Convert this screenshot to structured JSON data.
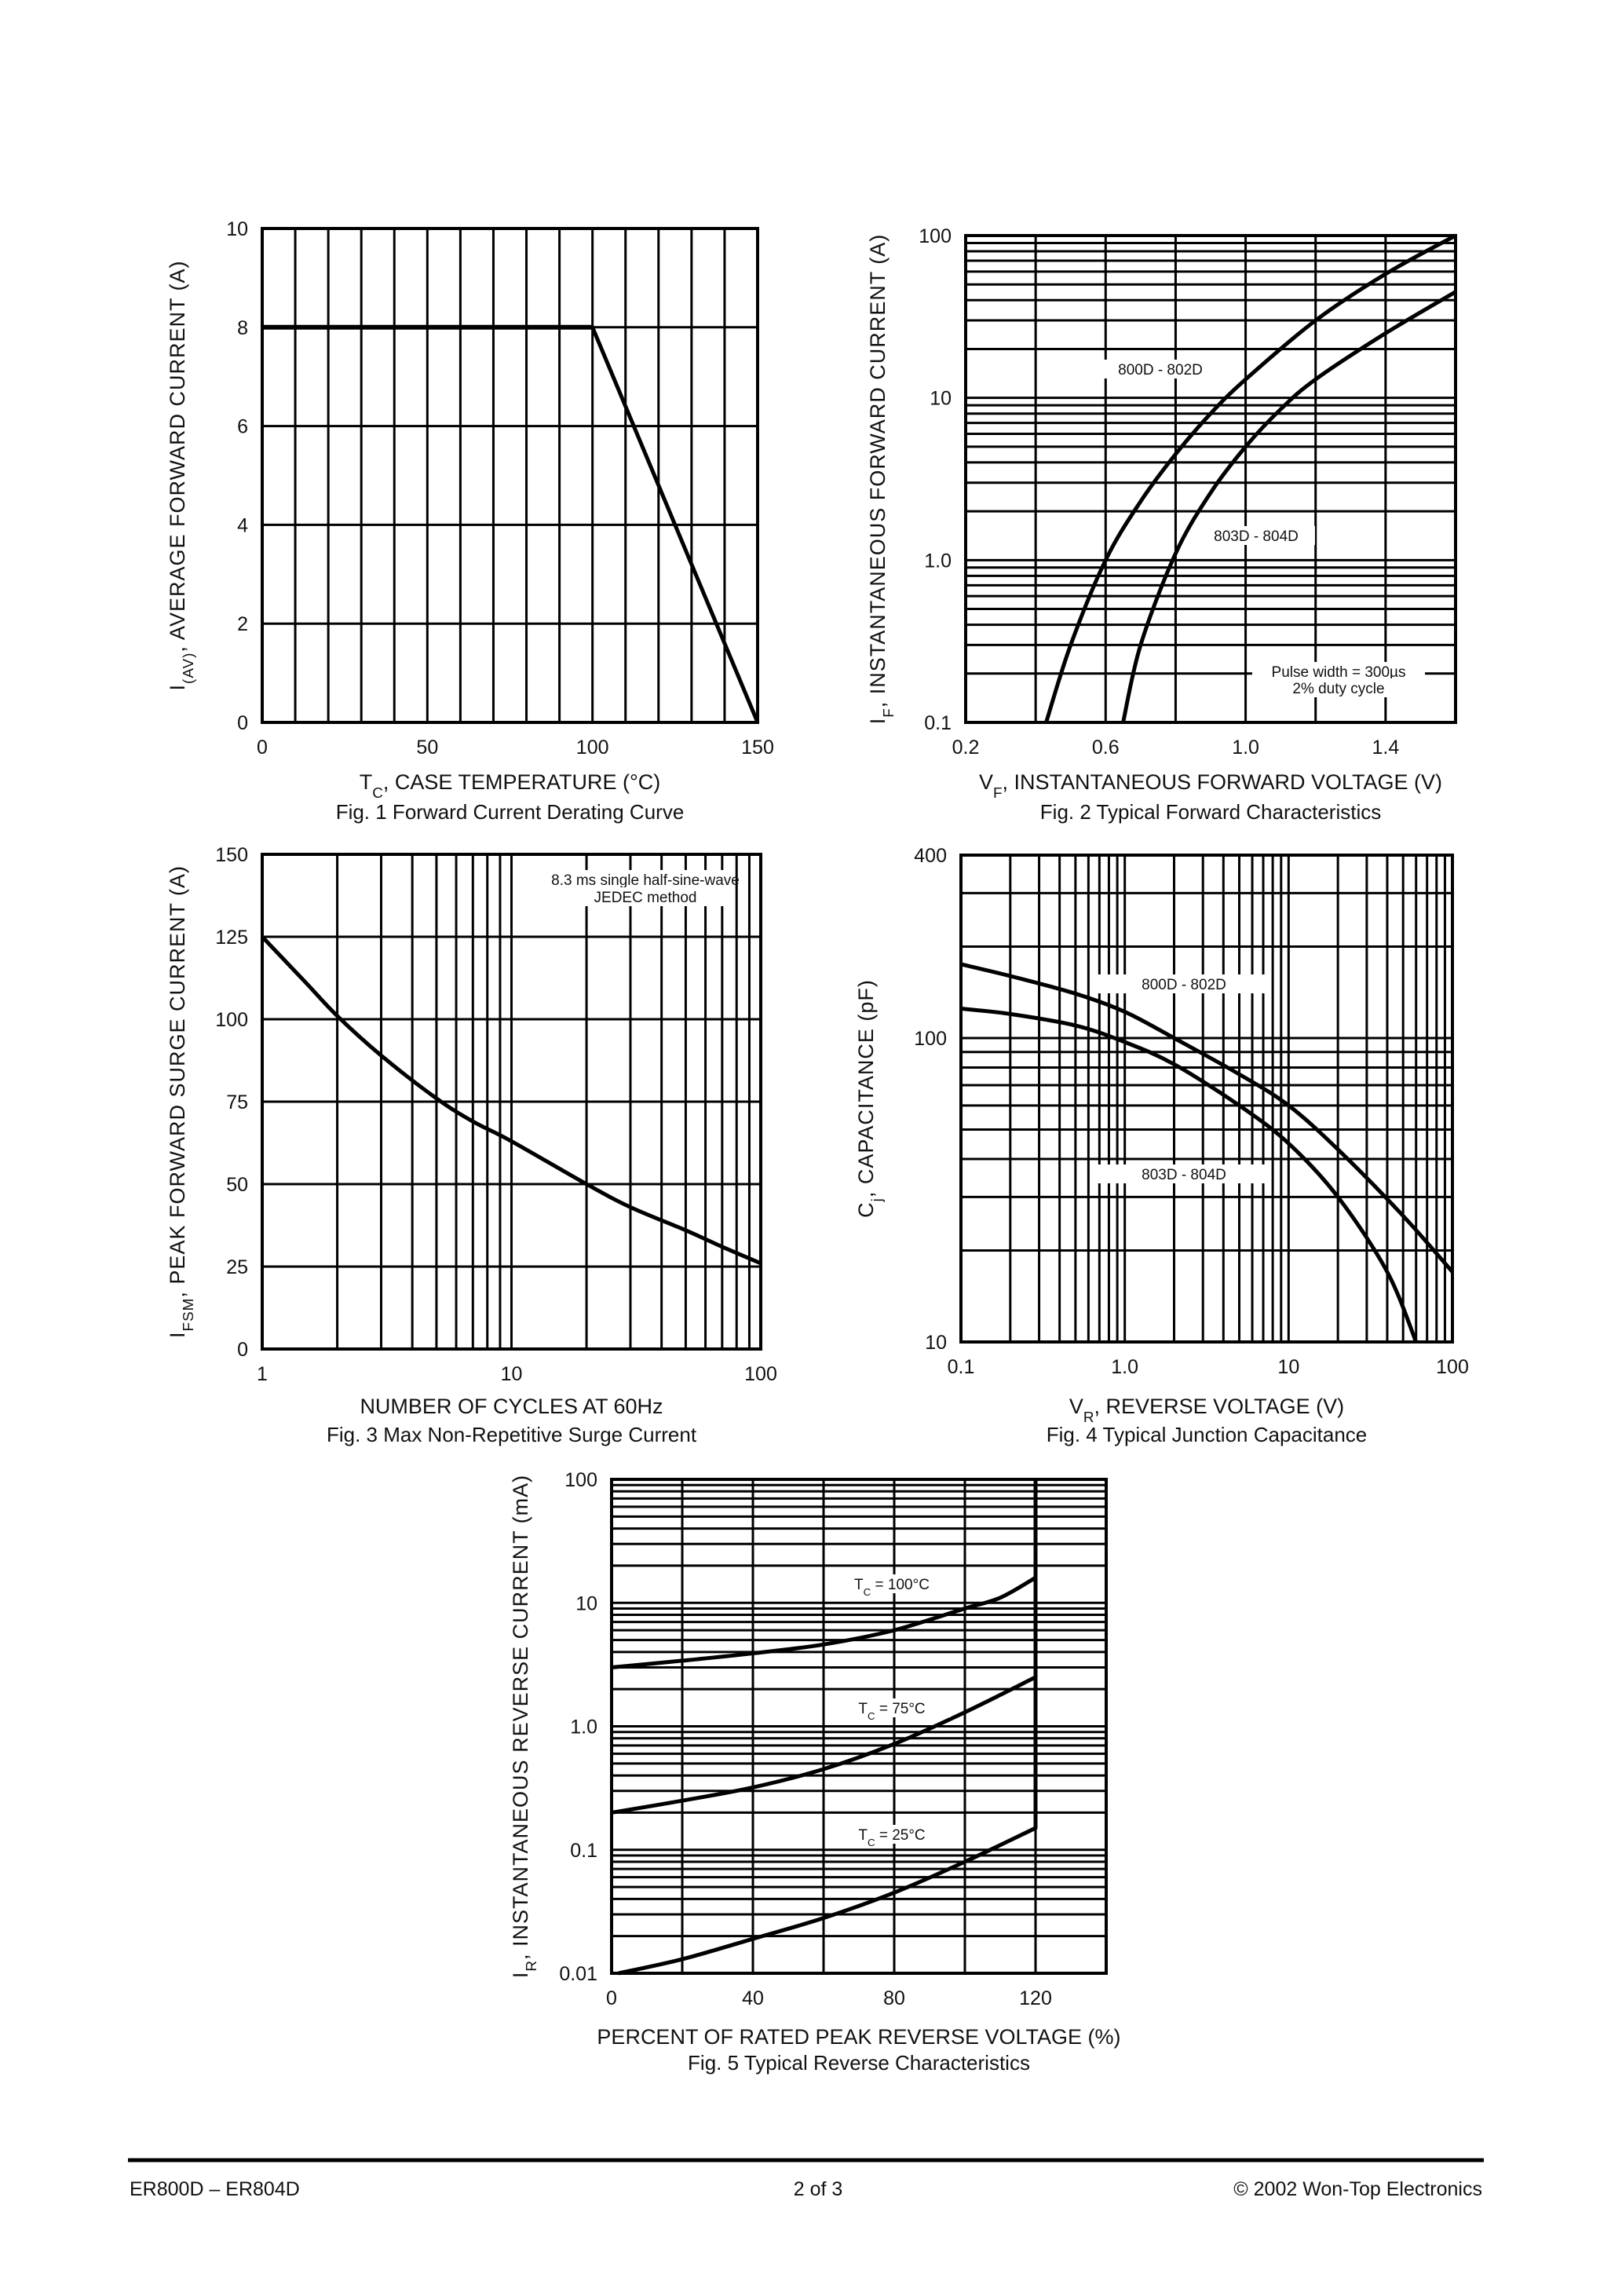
{
  "footer": {
    "left": "ER800D – ER804D",
    "center": "2 of 3",
    "right": "© 2002 Won-Top Electronics"
  },
  "chart_data": [
    {
      "type": "line",
      "caption": "Fig. 1  Forward Current Derating Curve",
      "xlabel": {
        "main": "T",
        "sub": "C",
        "rest": ", CASE TEMPERATURE (°C)"
      },
      "ylabel": {
        "main": "I",
        "sub": "(AV)",
        "rest": ", AVERAGE FORWARD CURRENT (A)"
      },
      "xscale": "linear",
      "yscale": "linear",
      "xlim": [
        0,
        150
      ],
      "ylim": [
        0,
        10
      ],
      "xticks": [
        0,
        50,
        100,
        150
      ],
      "xtick_labels": [
        "0",
        "50",
        "100",
        "150"
      ],
      "yticks": [
        0,
        2,
        4,
        6,
        8,
        10
      ],
      "ytick_labels": [
        "0",
        "2",
        "4",
        "6",
        "8",
        "10"
      ],
      "grid": true,
      "xgrid_step": 10,
      "ygrid_step": 2,
      "series": [
        {
          "x": [
            0,
            100,
            150
          ],
          "y": [
            8,
            8,
            0
          ]
        }
      ],
      "annotations": []
    },
    {
      "type": "line",
      "caption": "Fig. 2  Typical Forward Characteristics",
      "xlabel": {
        "main": "V",
        "sub": "F",
        "rest": ", INSTANTANEOUS FORWARD VOLTAGE (V)"
      },
      "ylabel": {
        "main": "I",
        "sub": "F",
        "rest": ", INSTANTANEOUS FORWARD CURRENT (A)"
      },
      "xscale": "linear",
      "yscale": "log",
      "xlim": [
        0.2,
        1.6
      ],
      "ylim": [
        0.1,
        100
      ],
      "xticks": [
        0.2,
        0.6,
        1.0,
        1.4
      ],
      "xtick_labels": [
        "0.2",
        "0.6",
        "1.0",
        "1.4"
      ],
      "yticks": [
        0.1,
        1,
        10,
        100
      ],
      "ytick_labels": [
        "0.1",
        "1.0",
        "10",
        "100"
      ],
      "grid": true,
      "xgrid_step": 0.2,
      "series": [
        {
          "name": "800D - 802D",
          "x": [
            0.43,
            0.5,
            0.6,
            0.7,
            0.8,
            0.9,
            1.0,
            1.2,
            1.4,
            1.6
          ],
          "y": [
            0.1,
            0.3,
            1.0,
            2.3,
            4.5,
            8,
            13,
            30,
            58,
            100
          ]
        },
        {
          "name": "803D - 804D",
          "x": [
            0.65,
            0.7,
            0.8,
            0.9,
            1.0,
            1.1,
            1.2,
            1.4,
            1.6
          ],
          "y": [
            0.1,
            0.3,
            1.1,
            2.6,
            5,
            8.5,
            13,
            25,
            45
          ]
        }
      ],
      "annotations": [
        "800D - 802D",
        "803D - 804D",
        "Pulse width = 300µs",
        "2% duty cycle"
      ]
    },
    {
      "type": "line",
      "caption": "Fig. 3  Max Non-Repetitive Surge Current",
      "xlabel": {
        "main": "NUMBER OF CYCLES AT 60Hz",
        "sub": "",
        "rest": ""
      },
      "ylabel": {
        "main": "I",
        "sub": "FSM",
        "rest": ", PEAK FORWARD SURGE CURRENT (A)"
      },
      "xscale": "log",
      "yscale": "linear",
      "xlim": [
        1,
        100
      ],
      "ylim": [
        0,
        150
      ],
      "xticks": [
        1,
        10,
        100
      ],
      "xtick_labels": [
        "1",
        "10",
        "100"
      ],
      "yticks": [
        0,
        25,
        50,
        75,
        100,
        125,
        150
      ],
      "ytick_labels": [
        "0",
        "25",
        "50",
        "75",
        "100",
        "125",
        "150"
      ],
      "grid": true,
      "ygrid_step": 25,
      "series": [
        {
          "x": [
            1,
            1.5,
            2,
            3,
            5,
            7,
            10,
            20,
            30,
            50,
            70,
            100
          ],
          "y": [
            125,
            111,
            101,
            89,
            76,
            69,
            63,
            50,
            43,
            36,
            31,
            26
          ]
        }
      ],
      "annotations": [
        "8.3 ms single half-sine-wave",
        "JEDEC method"
      ]
    },
    {
      "type": "line",
      "caption": "Fig. 4  Typical Junction Capacitance",
      "xlabel": {
        "main": "V",
        "sub": "R",
        "rest": ", REVERSE VOLTAGE (V)"
      },
      "ylabel": {
        "main": "C",
        "sub": "j",
        "rest": ", CAPACITANCE (pF)"
      },
      "xscale": "log",
      "yscale": "log",
      "xlim": [
        0.1,
        100
      ],
      "ylim": [
        10,
        400
      ],
      "xticks": [
        0.1,
        1,
        10,
        100
      ],
      "xtick_labels": [
        "0.1",
        "1.0",
        "10",
        "100"
      ],
      "yticks": [
        10,
        100,
        400
      ],
      "ytick_labels": [
        "10",
        "100",
        "400"
      ],
      "grid": true,
      "series": [
        {
          "name": "800D - 802D",
          "x": [
            0.1,
            0.2,
            0.5,
            1,
            2,
            5,
            10,
            20,
            50,
            100
          ],
          "y": [
            175,
            160,
            140,
            122,
            100,
            76,
            60,
            43,
            26,
            17
          ]
        },
        {
          "name": "803D - 804D",
          "x": [
            0.1,
            0.2,
            0.5,
            1,
            2,
            5,
            10,
            20,
            40,
            60
          ],
          "y": [
            125,
            120,
            110,
            97,
            82,
            60,
            45,
            30,
            17,
            10
          ]
        }
      ],
      "annotations": [
        "800D - 802D",
        "803D - 804D"
      ]
    },
    {
      "type": "line",
      "caption": "Fig. 5  Typical Reverse Characteristics",
      "xlabel": {
        "main": "PERCENT OF RATED PEAK REVERSE VOLTAGE (%)",
        "sub": "",
        "rest": ""
      },
      "ylabel": {
        "main": "I",
        "sub": "R",
        "rest": ", INSTANTANEOUS REVERSE CURRENT (mA)"
      },
      "xscale": "linear",
      "yscale": "log",
      "xlim": [
        0,
        140
      ],
      "ylim": [
        0.01,
        100
      ],
      "xticks": [
        0,
        40,
        80,
        120
      ],
      "xtick_labels": [
        "0",
        "40",
        "80",
        "120"
      ],
      "yticks": [
        0.01,
        0.1,
        1,
        10,
        100
      ],
      "ytick_labels": [
        "0.01",
        "0.1",
        "1.0",
        "10",
        "100"
      ],
      "grid": true,
      "xgrid_step": 20,
      "series": [
        {
          "name": "TC = 100°C",
          "x": [
            0,
            20,
            40,
            60,
            80,
            100,
            110,
            120
          ],
          "y": [
            3,
            3.4,
            3.9,
            4.6,
            6,
            9,
            11,
            16
          ]
        },
        {
          "name": "TC = 75°C",
          "x": [
            0,
            20,
            40,
            60,
            80,
            100,
            120
          ],
          "y": [
            0.2,
            0.25,
            0.32,
            0.45,
            0.72,
            1.3,
            2.5
          ]
        },
        {
          "name": "TC = 25°C",
          "x": [
            2,
            20,
            40,
            60,
            80,
            100,
            120,
            120
          ],
          "y": [
            0.01,
            0.013,
            0.019,
            0.028,
            0.045,
            0.08,
            0.15,
            100
          ]
        }
      ],
      "annotations": [
        {
          "main": "T",
          "sub": "C",
          "rest": " = 100°C"
        },
        {
          "main": "T",
          "sub": "C",
          "rest": " = 75°C"
        },
        {
          "main": "T",
          "sub": "C",
          "rest": " = 25°C"
        }
      ]
    }
  ]
}
